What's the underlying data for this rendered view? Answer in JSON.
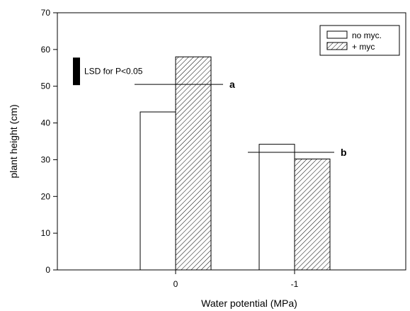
{
  "chart_data": {
    "type": "bar",
    "xlabel": "Water potential  (MPa)",
    "ylabel": "plant height (cm)",
    "categories": [
      "0",
      "-1"
    ],
    "ylim": [
      0,
      70
    ],
    "yticks": [
      0,
      10,
      20,
      30,
      40,
      50,
      60,
      70
    ],
    "grid": false,
    "legend_position": "top-right",
    "series": [
      {
        "name": "no myc.",
        "values": [
          43,
          34.2
        ],
        "fill": "white"
      },
      {
        "name": "+ myc",
        "values": [
          58,
          30.2
        ],
        "fill": "diagonal-hatch"
      }
    ],
    "lsd": {
      "label": "LSD for P<0.05",
      "range": [
        50.3,
        57.8
      ]
    },
    "group_annotations": [
      {
        "label": "a",
        "y": 50.5
      },
      {
        "label": "b",
        "y": 32
      }
    ],
    "colors": {
      "line": "#000000",
      "bar_fill": "#ffffff",
      "hatch": "#000000"
    }
  }
}
